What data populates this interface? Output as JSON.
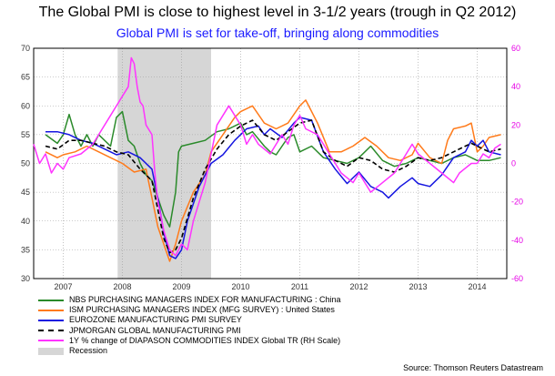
{
  "title": "The Global PMI is close to highest level in 3-1/2 years (trough in Q2 2012)",
  "subtitle": "Global PMI is set for take-off, bringing along commodities",
  "source": "Source: Thomson Reuters Datastream",
  "chart_data": {
    "type": "line",
    "x_start_year": 2006.5,
    "x_end_year": 2014.5,
    "year_labels": [
      "2007",
      "2008",
      "2009",
      "2010",
      "2011",
      "2012",
      "2013",
      "2014"
    ],
    "y_left": {
      "min": 30,
      "max": 70,
      "ticks": [
        "30",
        "35",
        "40",
        "45",
        "50",
        "55",
        "60",
        "65",
        "70"
      ]
    },
    "y_right": {
      "min": -60,
      "max": 60,
      "ticks": [
        "-60",
        "-40",
        "-20",
        "0",
        "20",
        "40",
        "60"
      ],
      "tick_color": "#e600e6"
    },
    "recession": {
      "start": 2007.92,
      "end": 2009.5,
      "label": "Recession",
      "color": "#d6d6d6"
    },
    "grid": true,
    "series": [
      {
        "name": "NBS PURCHASING MANAGERS INDEX  FOR MANUFACTURING : China",
        "color": "#2a8a2a",
        "axis": "left",
        "dash": false,
        "points": [
          [
            2006.7,
            55.0
          ],
          [
            2006.9,
            53.5
          ],
          [
            2007.0,
            55.0
          ],
          [
            2007.1,
            58.5
          ],
          [
            2007.2,
            55.0
          ],
          [
            2007.3,
            53.0
          ],
          [
            2007.4,
            55.0
          ],
          [
            2007.5,
            53.0
          ],
          [
            2007.6,
            55.0
          ],
          [
            2007.8,
            53.0
          ],
          [
            2007.9,
            58.0
          ],
          [
            2008.0,
            59.0
          ],
          [
            2008.1,
            54.0
          ],
          [
            2008.2,
            53.0
          ],
          [
            2008.3,
            50.0
          ],
          [
            2008.4,
            48.0
          ],
          [
            2008.5,
            47.0
          ],
          [
            2008.6,
            44.0
          ],
          [
            2008.7,
            41.0
          ],
          [
            2008.8,
            39.0
          ],
          [
            2008.9,
            45.0
          ],
          [
            2008.95,
            52.0
          ],
          [
            2009.0,
            53.0
          ],
          [
            2009.2,
            53.5
          ],
          [
            2009.4,
            54.0
          ],
          [
            2009.6,
            55.5
          ],
          [
            2009.8,
            56.0
          ],
          [
            2010.0,
            57.0
          ],
          [
            2010.1,
            55.0
          ],
          [
            2010.2,
            55.5
          ],
          [
            2010.4,
            53.0
          ],
          [
            2010.5,
            52.0
          ],
          [
            2010.6,
            51.5
          ],
          [
            2010.8,
            54.5
          ],
          [
            2010.9,
            55.0
          ],
          [
            2011.0,
            52.0
          ],
          [
            2011.2,
            53.0
          ],
          [
            2011.4,
            51.0
          ],
          [
            2011.6,
            50.5
          ],
          [
            2011.8,
            50.0
          ],
          [
            2012.0,
            51.0
          ],
          [
            2012.2,
            53.0
          ],
          [
            2012.4,
            50.5
          ],
          [
            2012.6,
            49.5
          ],
          [
            2012.8,
            50.0
          ],
          [
            2013.0,
            51.0
          ],
          [
            2013.2,
            50.5
          ],
          [
            2013.4,
            50.0
          ],
          [
            2013.6,
            51.0
          ],
          [
            2013.8,
            51.5
          ],
          [
            2014.0,
            50.5
          ],
          [
            2014.2,
            50.5
          ],
          [
            2014.4,
            51.0
          ]
        ]
      },
      {
        "name": "ISM PURCHASING MANAGERS INDEX (MFG SURVEY) : United States",
        "color": "#ff7a1a",
        "axis": "left",
        "dash": false,
        "points": [
          [
            2006.7,
            52.0
          ],
          [
            2006.9,
            51.0
          ],
          [
            2007.0,
            51.5
          ],
          [
            2007.2,
            52.0
          ],
          [
            2007.4,
            53.0
          ],
          [
            2007.6,
            52.0
          ],
          [
            2007.8,
            51.0
          ],
          [
            2008.0,
            50.0
          ],
          [
            2008.2,
            48.5
          ],
          [
            2008.4,
            49.0
          ],
          [
            2008.5,
            44.0
          ],
          [
            2008.6,
            39.0
          ],
          [
            2008.7,
            36.0
          ],
          [
            2008.8,
            33.0
          ],
          [
            2008.9,
            36.0
          ],
          [
            2009.0,
            40.0
          ],
          [
            2009.2,
            45.0
          ],
          [
            2009.4,
            48.0
          ],
          [
            2009.5,
            52.0
          ],
          [
            2009.7,
            55.0
          ],
          [
            2009.9,
            58.0
          ],
          [
            2010.0,
            59.0
          ],
          [
            2010.2,
            60.0
          ],
          [
            2010.4,
            57.0
          ],
          [
            2010.6,
            56.0
          ],
          [
            2010.8,
            57.0
          ],
          [
            2011.0,
            60.0
          ],
          [
            2011.1,
            61.0
          ],
          [
            2011.3,
            57.0
          ],
          [
            2011.5,
            52.0
          ],
          [
            2011.7,
            52.0
          ],
          [
            2011.9,
            53.0
          ],
          [
            2012.1,
            54.5
          ],
          [
            2012.3,
            53.0
          ],
          [
            2012.5,
            51.0
          ],
          [
            2012.7,
            50.5
          ],
          [
            2012.9,
            51.5
          ],
          [
            2013.0,
            53.5
          ],
          [
            2013.2,
            51.0
          ],
          [
            2013.4,
            50.0
          ],
          [
            2013.5,
            54.0
          ],
          [
            2013.6,
            56.0
          ],
          [
            2013.8,
            56.5
          ],
          [
            2013.9,
            57.0
          ],
          [
            2014.0,
            52.0
          ],
          [
            2014.1,
            53.0
          ],
          [
            2014.2,
            54.5
          ],
          [
            2014.4,
            55.0
          ]
        ]
      },
      {
        "name": "EUROZONE MANUFACTURING PMI SURVEY",
        "color": "#1515e0",
        "axis": "left",
        "dash": false,
        "points": [
          [
            2006.7,
            55.5
          ],
          [
            2006.9,
            55.5
          ],
          [
            2007.1,
            55.0
          ],
          [
            2007.3,
            54.0
          ],
          [
            2007.5,
            53.5
          ],
          [
            2007.7,
            52.5
          ],
          [
            2007.9,
            51.5
          ],
          [
            2008.1,
            52.0
          ],
          [
            2008.3,
            51.0
          ],
          [
            2008.5,
            49.0
          ],
          [
            2008.6,
            44.0
          ],
          [
            2008.7,
            38.0
          ],
          [
            2008.8,
            34.0
          ],
          [
            2008.9,
            33.5
          ],
          [
            2009.0,
            35.0
          ],
          [
            2009.1,
            40.0
          ],
          [
            2009.3,
            46.0
          ],
          [
            2009.5,
            50.0
          ],
          [
            2009.7,
            51.5
          ],
          [
            2009.9,
            54.0
          ],
          [
            2010.1,
            56.0
          ],
          [
            2010.3,
            56.5
          ],
          [
            2010.4,
            55.0
          ],
          [
            2010.5,
            56.0
          ],
          [
            2010.7,
            54.5
          ],
          [
            2010.9,
            57.0
          ],
          [
            2011.0,
            58.0
          ],
          [
            2011.2,
            57.5
          ],
          [
            2011.4,
            52.0
          ],
          [
            2011.6,
            49.0
          ],
          [
            2011.8,
            46.5
          ],
          [
            2012.0,
            48.5
          ],
          [
            2012.2,
            46.0
          ],
          [
            2012.4,
            45.0
          ],
          [
            2012.5,
            44.0
          ],
          [
            2012.7,
            46.0
          ],
          [
            2012.9,
            47.5
          ],
          [
            2013.0,
            46.5
          ],
          [
            2013.2,
            46.0
          ],
          [
            2013.4,
            48.0
          ],
          [
            2013.6,
            51.0
          ],
          [
            2013.8,
            52.0
          ],
          [
            2013.9,
            54.0
          ],
          [
            2014.0,
            53.0
          ],
          [
            2014.1,
            54.0
          ],
          [
            2014.2,
            52.0
          ],
          [
            2014.4,
            51.5
          ]
        ]
      },
      {
        "name": "JPMORGAN GLOBAL MANUFACTURING PMI",
        "color": "#000000",
        "axis": "left",
        "dash": true,
        "points": [
          [
            2006.7,
            53.0
          ],
          [
            2006.9,
            52.5
          ],
          [
            2007.1,
            54.0
          ],
          [
            2007.3,
            54.0
          ],
          [
            2007.5,
            53.5
          ],
          [
            2007.7,
            53.0
          ],
          [
            2007.9,
            52.0
          ],
          [
            2008.1,
            51.5
          ],
          [
            2008.3,
            49.0
          ],
          [
            2008.5,
            47.0
          ],
          [
            2008.6,
            42.0
          ],
          [
            2008.7,
            37.0
          ],
          [
            2008.8,
            34.5
          ],
          [
            2008.9,
            35.0
          ],
          [
            2009.0,
            37.0
          ],
          [
            2009.2,
            44.0
          ],
          [
            2009.4,
            49.0
          ],
          [
            2009.6,
            52.5
          ],
          [
            2009.8,
            55.0
          ],
          [
            2010.0,
            56.5
          ],
          [
            2010.2,
            57.5
          ],
          [
            2010.4,
            55.0
          ],
          [
            2010.6,
            54.0
          ],
          [
            2010.8,
            55.5
          ],
          [
            2011.0,
            57.0
          ],
          [
            2011.2,
            57.5
          ],
          [
            2011.4,
            52.0
          ],
          [
            2011.6,
            50.5
          ],
          [
            2011.8,
            49.5
          ],
          [
            2012.0,
            51.0
          ],
          [
            2012.2,
            50.5
          ],
          [
            2012.4,
            49.0
          ],
          [
            2012.6,
            48.5
          ],
          [
            2012.8,
            49.5
          ],
          [
            2013.0,
            51.0
          ],
          [
            2013.2,
            50.5
          ],
          [
            2013.4,
            51.0
          ],
          [
            2013.6,
            52.0
          ],
          [
            2013.8,
            53.0
          ],
          [
            2013.9,
            53.5
          ],
          [
            2014.0,
            53.0
          ],
          [
            2014.2,
            52.0
          ],
          [
            2014.4,
            52.5
          ]
        ]
      },
      {
        "name": "1Y % change of DIAPASON COMMODITIES INDEX Global TR (RH Scale)",
        "color": "#ff33ff",
        "axis": "right",
        "dash": false,
        "points": [
          [
            2006.5,
            10
          ],
          [
            2006.6,
            0
          ],
          [
            2006.7,
            5
          ],
          [
            2006.8,
            -5
          ],
          [
            2006.9,
            0
          ],
          [
            2007.0,
            -3
          ],
          [
            2007.1,
            3
          ],
          [
            2007.3,
            5
          ],
          [
            2007.5,
            10
          ],
          [
            2007.6,
            15
          ],
          [
            2007.8,
            25
          ],
          [
            2008.0,
            35
          ],
          [
            2008.1,
            40
          ],
          [
            2008.15,
            55
          ],
          [
            2008.2,
            52
          ],
          [
            2008.25,
            40
          ],
          [
            2008.3,
            32
          ],
          [
            2008.35,
            30
          ],
          [
            2008.4,
            20
          ],
          [
            2008.5,
            15
          ],
          [
            2008.55,
            -5
          ],
          [
            2008.6,
            -20
          ],
          [
            2008.7,
            -35
          ],
          [
            2008.8,
            -45
          ],
          [
            2008.9,
            -48
          ],
          [
            2009.0,
            -42
          ],
          [
            2009.1,
            -45
          ],
          [
            2009.2,
            -30
          ],
          [
            2009.3,
            -20
          ],
          [
            2009.4,
            -10
          ],
          [
            2009.5,
            5
          ],
          [
            2009.6,
            20
          ],
          [
            2009.7,
            25
          ],
          [
            2009.8,
            30
          ],
          [
            2009.9,
            25
          ],
          [
            2010.0,
            20
          ],
          [
            2010.1,
            10
          ],
          [
            2010.2,
            15
          ],
          [
            2010.3,
            10
          ],
          [
            2010.5,
            5
          ],
          [
            2010.7,
            15
          ],
          [
            2010.8,
            10
          ],
          [
            2010.9,
            20
          ],
          [
            2011.0,
            25
          ],
          [
            2011.1,
            18
          ],
          [
            2011.3,
            15
          ],
          [
            2011.5,
            5
          ],
          [
            2011.7,
            -5
          ],
          [
            2011.9,
            -10
          ],
          [
            2012.0,
            -5
          ],
          [
            2012.1,
            -10
          ],
          [
            2012.2,
            -15
          ],
          [
            2012.4,
            -10
          ],
          [
            2012.6,
            -5
          ],
          [
            2012.8,
            5
          ],
          [
            2012.9,
            10
          ],
          [
            2013.0,
            5
          ],
          [
            2013.2,
            0
          ],
          [
            2013.4,
            -5
          ],
          [
            2013.6,
            -10
          ],
          [
            2013.7,
            -5
          ],
          [
            2013.9,
            0
          ],
          [
            2014.0,
            0
          ],
          [
            2014.1,
            5
          ],
          [
            2014.2,
            3
          ],
          [
            2014.3,
            8
          ],
          [
            2014.4,
            10
          ]
        ]
      }
    ]
  }
}
